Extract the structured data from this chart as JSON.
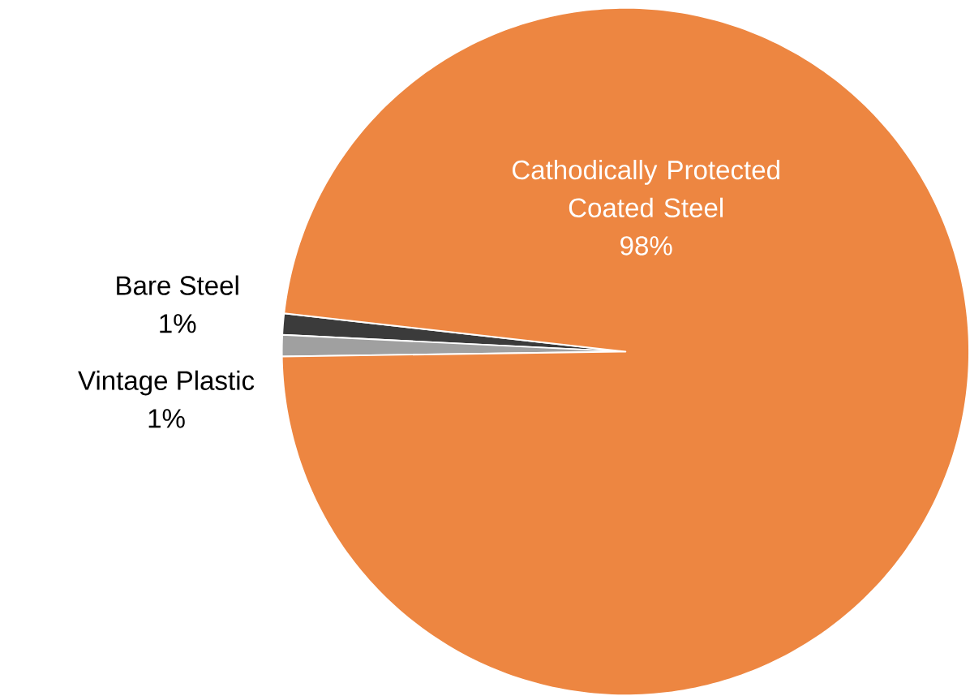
{
  "chart_data": {
    "type": "pie",
    "categories": [
      "Bare Steel",
      "Vintage Plastic",
      "Cathodically Protected Coated Steel"
    ],
    "values": [
      1,
      1,
      98
    ],
    "value_labels": [
      "1%",
      "1%",
      "98%"
    ],
    "colors": [
      "#3b3b3b",
      "#a0a0a0",
      "#ed8641"
    ]
  }
}
